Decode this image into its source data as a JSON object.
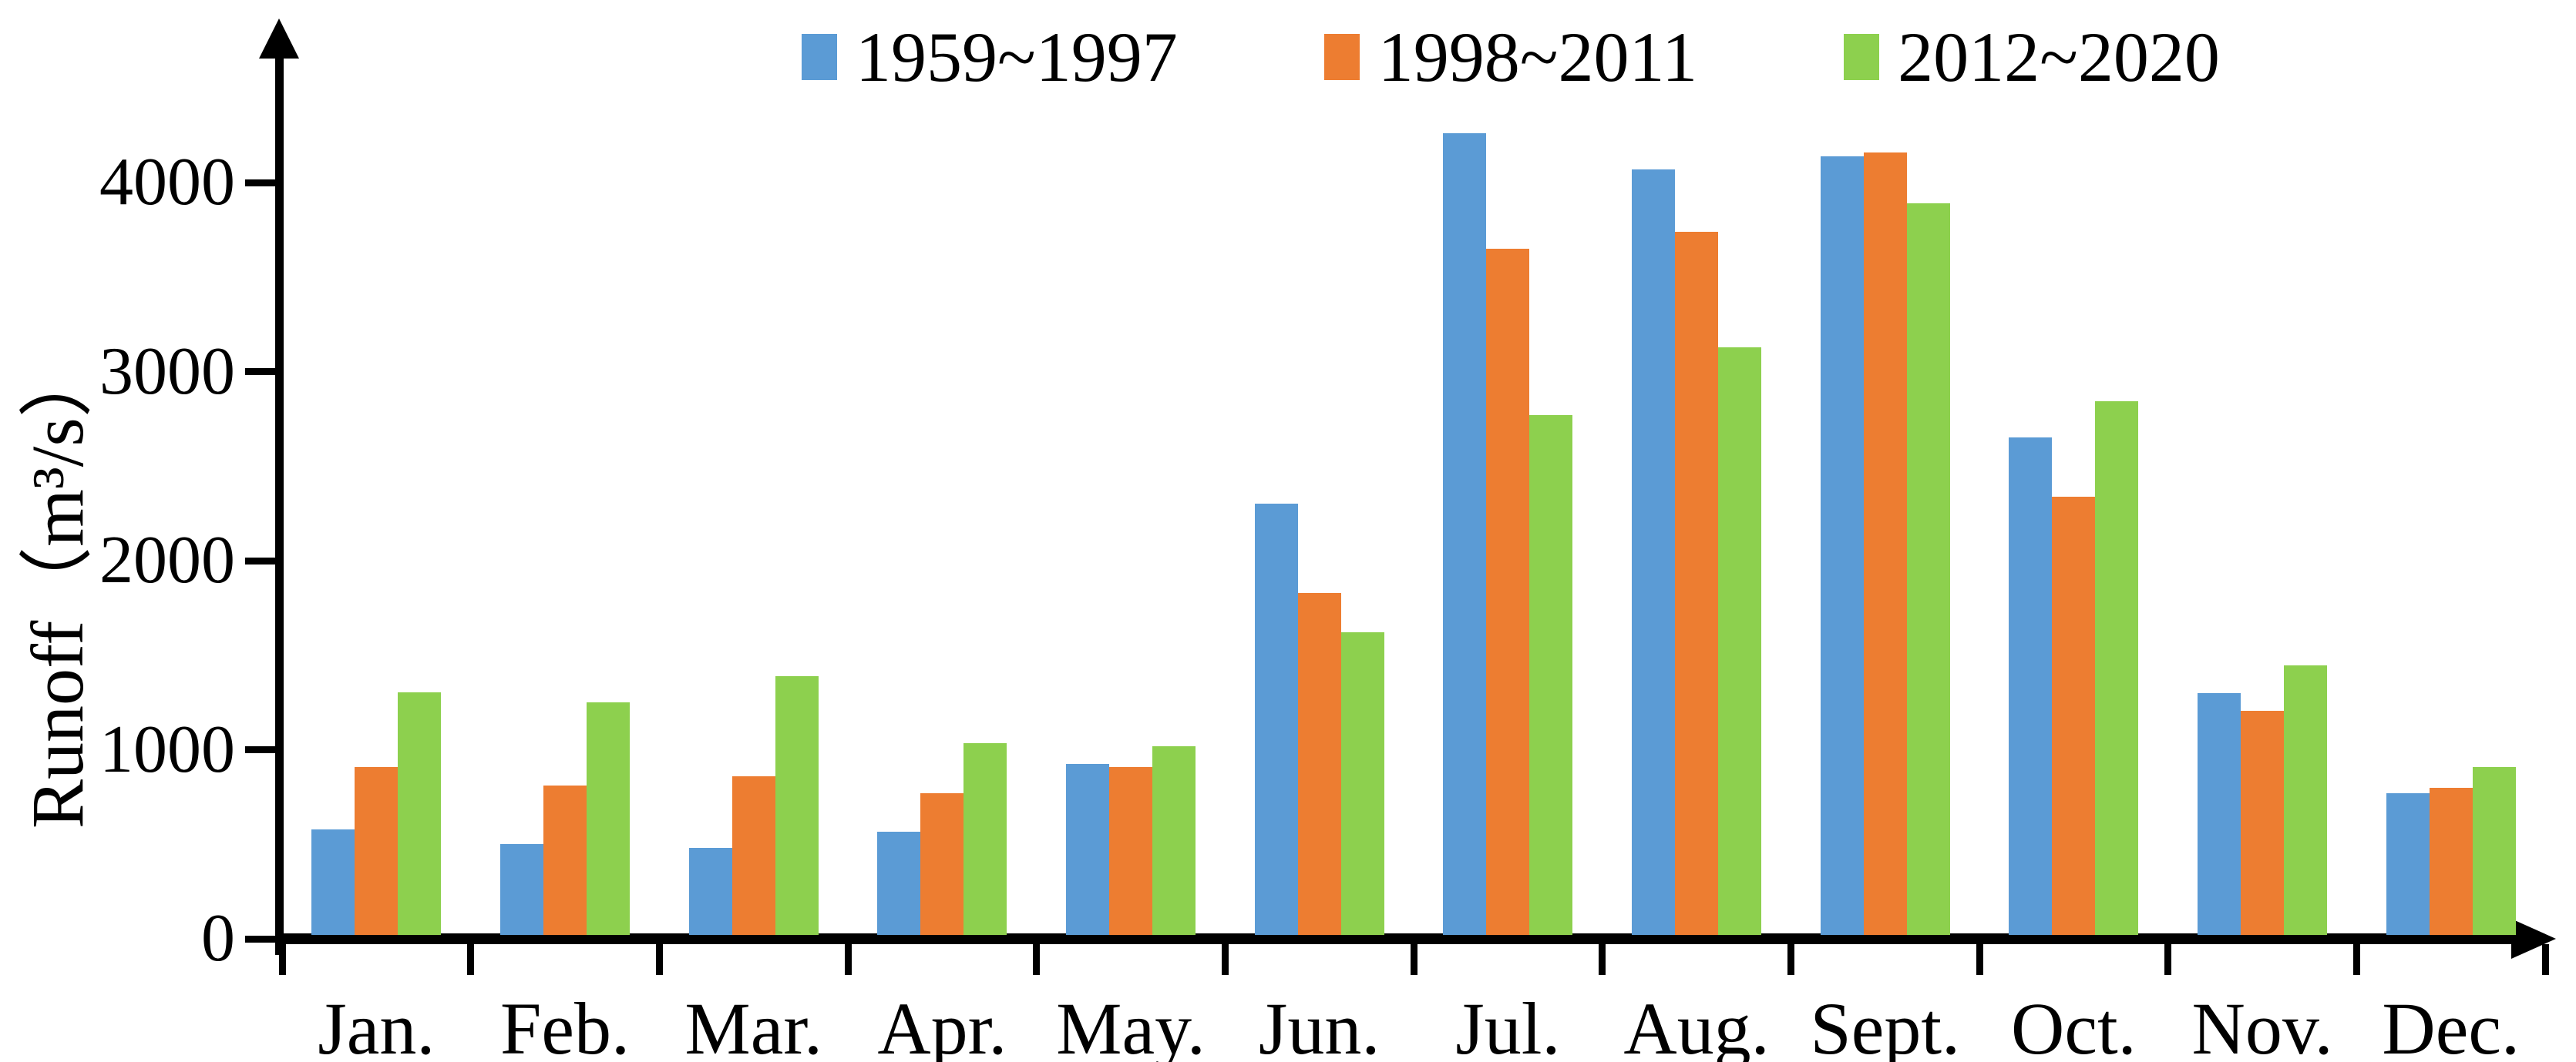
{
  "chart_data": {
    "type": "bar",
    "title": "",
    "xlabel": "",
    "ylabel": "Runoff（m³/s）",
    "ylim": [
      0,
      4600
    ],
    "grid": false,
    "legend_position": "top-center",
    "y_ticks": [
      0,
      1000,
      2000,
      3000,
      4000
    ],
    "categories": [
      "Jan.",
      "Feb.",
      "Mar.",
      "Apr.",
      "May.",
      "Jun.",
      "Jul.",
      "Aug.",
      "Sept.",
      "Oct.",
      "Nov.",
      "Dec."
    ],
    "series": [
      {
        "name": "1959~1997",
        "color": "#5B9BD5",
        "values": [
          580,
          500,
          480,
          565,
          925,
          2300,
          4260,
          4070,
          4140,
          2650,
          1300,
          770
        ]
      },
      {
        "name": "1998~2011",
        "color": "#ED7D31",
        "values": [
          910,
          810,
          860,
          770,
          910,
          1830,
          3650,
          3740,
          4160,
          2340,
          1205,
          800
        ]
      },
      {
        "name": "2012~2020",
        "color": "#8DD04E",
        "values": [
          1305,
          1250,
          1390,
          1035,
          1020,
          1620,
          2770,
          3130,
          3890,
          2845,
          1445,
          910
        ]
      }
    ],
    "axis_color": "#000000"
  }
}
